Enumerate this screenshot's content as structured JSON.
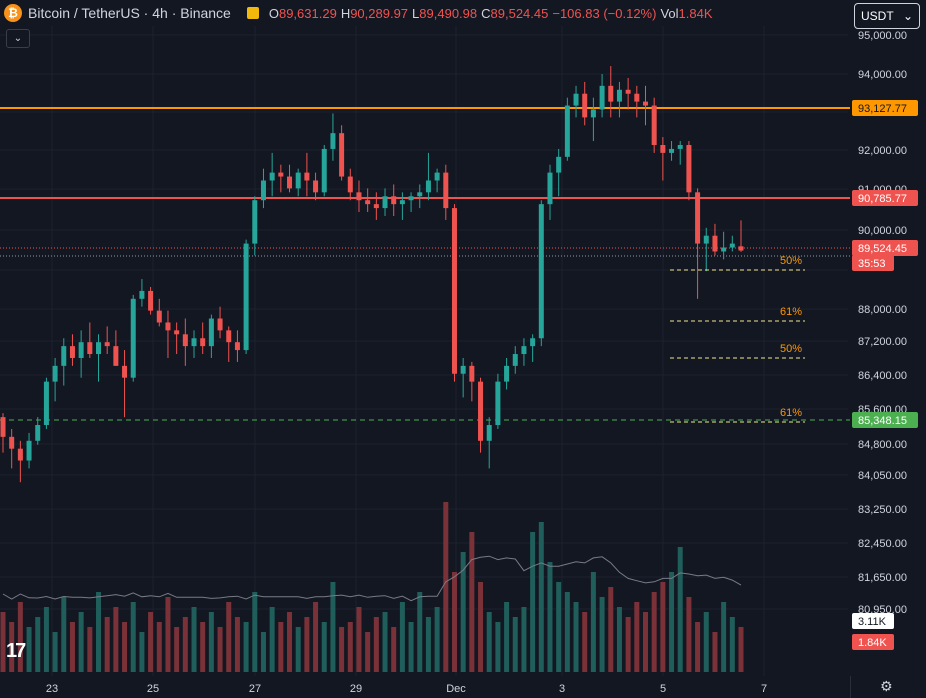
{
  "header": {
    "symbol": "Bitcoin / TetherUS · 4h · Binance",
    "open_key": "O",
    "open": "89,631.29",
    "high_key": "H",
    "high": "90,289.97",
    "low_key": "L",
    "low": "89,490.98",
    "close_key": "C",
    "close": "89,524.45",
    "change": "−106.83 (−0.12%)",
    "vol_key": "Vol",
    "vol": "1.84K"
  },
  "currency": {
    "label": "USDT",
    "chevron": "chevron-down-icon"
  },
  "collapse_icon": "chevron-down-icon",
  "colors": {
    "up": "#26a69a",
    "down": "#ef5350",
    "bg": "#131722",
    "grid": "#1e222d",
    "orange": "#ff9800",
    "fib": "#f0e68c",
    "green_label": "#4caf50"
  },
  "chart_data": {
    "type": "candlestick",
    "y_axis_labels": [
      "95,000.00",
      "94,000.00",
      "93,127.77",
      "92,000.00",
      "91,000.00",
      "90,785.77",
      "90,000.00",
      "89,524.45",
      "35:53",
      "88,000.00",
      "87,200.00",
      "86,400.00",
      "85,600.00",
      "85,348.15",
      "84,800.00",
      "84,050.00",
      "83,250.00",
      "82,450.00",
      "81,650.00",
      "80,950.00",
      "3.11K",
      "1.84K"
    ],
    "x_axis_labels": [
      "23",
      "25",
      "27",
      "29",
      "Dec",
      "3",
      "5",
      "7"
    ],
    "horizontal_lines": [
      {
        "price": 93127.77,
        "label": "93,127.77",
        "color": "#ff9800"
      },
      {
        "price": 90785.77,
        "label": "90,785.77",
        "color": "#ef5350"
      },
      {
        "price": 85348.15,
        "label": "85,348.15",
        "color": "#4caf50",
        "style": "dashed"
      }
    ],
    "last_price": {
      "price": 89524.45,
      "label": "89,524.45",
      "countdown": "35:53"
    },
    "fib_levels": [
      {
        "label": "50%",
        "price": 89000
      },
      {
        "label": "61%",
        "price": 87800
      },
      {
        "label": "50%",
        "price": 86900
      },
      {
        "label": "61%",
        "price": 85400
      }
    ],
    "volume_labels": {
      "ma": "3.11K",
      "last": "1.84K"
    },
    "candles": [
      [
        85300,
        85400,
        84400,
        84800
      ],
      [
        84800,
        85000,
        84000,
        84500
      ],
      [
        84500,
        84700,
        83650,
        84200
      ],
      [
        84200,
        84900,
        84000,
        84700
      ],
      [
        84700,
        85300,
        84600,
        85100
      ],
      [
        85100,
        86300,
        85000,
        86200
      ],
      [
        86200,
        86800,
        85700,
        86600
      ],
      [
        86600,
        87300,
        86100,
        87100
      ],
      [
        87100,
        87400,
        86600,
        86800
      ],
      [
        86800,
        87500,
        86300,
        87200
      ],
      [
        87200,
        87700,
        86800,
        86900
      ],
      [
        86900,
        87400,
        86200,
        87200
      ],
      [
        87200,
        87600,
        86900,
        87100
      ],
      [
        87100,
        87500,
        86600,
        86600
      ],
      [
        86600,
        87000,
        85300,
        86300
      ],
      [
        86300,
        88400,
        86200,
        88300
      ],
      [
        88300,
        88800,
        88100,
        88500
      ],
      [
        88500,
        88600,
        87900,
        88000
      ],
      [
        88000,
        88300,
        87600,
        87700
      ],
      [
        87700,
        88000,
        86800,
        87500
      ],
      [
        87500,
        87700,
        86900,
        87400
      ],
      [
        87400,
        87800,
        86600,
        87100
      ],
      [
        87100,
        87500,
        86800,
        87300
      ],
      [
        87300,
        87700,
        86900,
        87100
      ],
      [
        87100,
        87900,
        86800,
        87800
      ],
      [
        87800,
        88100,
        87300,
        87500
      ],
      [
        87500,
        87600,
        86700,
        87200
      ],
      [
        87200,
        87500,
        86700,
        87000
      ],
      [
        87000,
        89800,
        86900,
        89700
      ],
      [
        89700,
        90900,
        89400,
        90800
      ],
      [
        90800,
        91600,
        90600,
        91300
      ],
      [
        91300,
        92000,
        90900,
        91500
      ],
      [
        91500,
        91700,
        91000,
        91400
      ],
      [
        91400,
        91700,
        91000,
        91100
      ],
      [
        91100,
        91600,
        90900,
        91500
      ],
      [
        91500,
        92000,
        90900,
        91300
      ],
      [
        91300,
        91500,
        90800,
        91000
      ],
      [
        91000,
        92200,
        90900,
        92100
      ],
      [
        92100,
        93000,
        91800,
        92500
      ],
      [
        92500,
        92700,
        91300,
        91400
      ],
      [
        91400,
        91600,
        90800,
        91000
      ],
      [
        91000,
        91300,
        90500,
        90800
      ],
      [
        90800,
        91100,
        90500,
        90700
      ],
      [
        90700,
        91000,
        90300,
        90600
      ],
      [
        90600,
        91100,
        90400,
        90900
      ],
      [
        90900,
        91200,
        90400,
        90700
      ],
      [
        90700,
        91000,
        90300,
        90800
      ],
      [
        90800,
        91000,
        90500,
        90900
      ],
      [
        90900,
        91200,
        90600,
        91000
      ],
      [
        91000,
        92000,
        90800,
        91300
      ],
      [
        91300,
        91600,
        91000,
        91500
      ],
      [
        91500,
        91700,
        90300,
        90600
      ],
      [
        90600,
        90700,
        86200,
        86400
      ],
      [
        86400,
        86800,
        85800,
        86600
      ],
      [
        86600,
        86700,
        85700,
        86200
      ],
      [
        86200,
        86300,
        84400,
        84700
      ],
      [
        84700,
        85300,
        84000,
        85100
      ],
      [
        85100,
        86400,
        85000,
        86200
      ],
      [
        86200,
        86800,
        86000,
        86600
      ],
      [
        86600,
        87100,
        86400,
        86900
      ],
      [
        86900,
        87300,
        86600,
        87100
      ],
      [
        87100,
        87400,
        86700,
        87300
      ],
      [
        87300,
        90800,
        87100,
        90700
      ],
      [
        90700,
        91700,
        90300,
        91500
      ],
      [
        91500,
        92100,
        90900,
        91900
      ],
      [
        91900,
        93400,
        91800,
        93200
      ],
      [
        93200,
        93700,
        92900,
        93500
      ],
      [
        93500,
        93800,
        92700,
        92900
      ],
      [
        92900,
        93400,
        92300,
        93100
      ],
      [
        93100,
        94000,
        92900,
        93700
      ],
      [
        93700,
        94200,
        92900,
        93300
      ],
      [
        93300,
        93800,
        92900,
        93600
      ],
      [
        93600,
        93900,
        93100,
        93500
      ],
      [
        93500,
        93700,
        92900,
        93300
      ],
      [
        93300,
        93700,
        92700,
        93200
      ],
      [
        93200,
        93400,
        92000,
        92200
      ],
      [
        92200,
        92400,
        91300,
        92000
      ],
      [
        92000,
        92300,
        91800,
        92100
      ],
      [
        92100,
        92300,
        91700,
        92200
      ],
      [
        92200,
        92300,
        90800,
        91000
      ],
      [
        91000,
        91100,
        88300,
        89700
      ],
      [
        89700,
        90100,
        89000,
        89900
      ],
      [
        89900,
        90200,
        89400,
        89500
      ],
      [
        89500,
        90000,
        89300,
        89600
      ],
      [
        89600,
        89900,
        89500,
        89700
      ],
      [
        89631,
        90290,
        89491,
        89524
      ]
    ],
    "volumes": [
      12,
      10,
      14,
      9,
      11,
      13,
      8,
      15,
      10,
      12,
      9,
      16,
      11,
      13,
      10,
      14,
      8,
      12,
      10,
      15,
      9,
      11,
      13,
      10,
      12,
      9,
      14,
      11,
      10,
      16,
      8,
      13,
      10,
      12,
      9,
      11,
      14,
      10,
      18,
      9,
      10,
      13,
      8,
      11,
      12,
      9,
      14,
      10,
      16,
      11,
      13,
      34,
      20,
      24,
      28,
      18,
      12,
      10,
      14,
      11,
      13,
      28,
      30,
      22,
      18,
      16,
      14,
      12,
      20,
      15,
      17,
      13,
      11,
      14,
      12,
      16,
      18,
      20,
      25,
      15,
      10,
      12,
      8,
      14,
      11,
      9
    ]
  }
}
